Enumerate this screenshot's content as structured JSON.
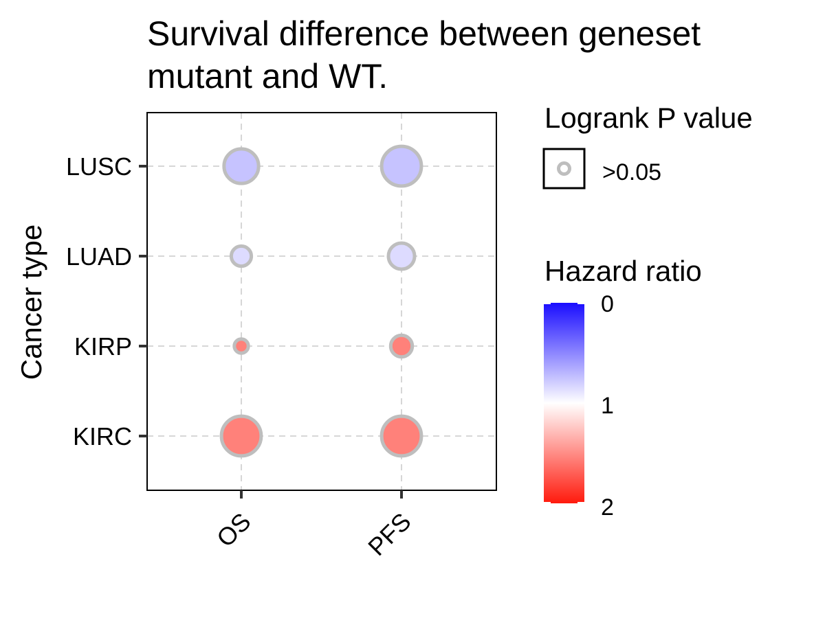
{
  "chart_data": {
    "type": "scatter",
    "title_lines": [
      "Survival difference between geneset",
      "mutant and WT."
    ],
    "xlabel": "",
    "ylabel": "Cancer type",
    "x_categories": [
      "OS",
      "PFS"
    ],
    "y_categories": [
      "KIRC",
      "KIRP",
      "LUAD",
      "LUSC"
    ],
    "grid": true,
    "points": [
      {
        "x": "OS",
        "y": "LUSC",
        "hazard_ratio": 0.75,
        "size_level": 0.78,
        "p_group": ">0.05"
      },
      {
        "x": "PFS",
        "y": "LUSC",
        "hazard_ratio": 0.75,
        "size_level": 0.95,
        "p_group": ">0.05"
      },
      {
        "x": "OS",
        "y": "LUAD",
        "hazard_ratio": 0.85,
        "size_level": 0.3,
        "p_group": ">0.05"
      },
      {
        "x": "PFS",
        "y": "LUAD",
        "hazard_ratio": 0.85,
        "size_level": 0.5,
        "p_group": ">0.05"
      },
      {
        "x": "OS",
        "y": "KIRP",
        "hazard_ratio": 1.55,
        "size_level": 0.1,
        "p_group": ">0.05"
      },
      {
        "x": "PFS",
        "y": "KIRP",
        "hazard_ratio": 1.55,
        "size_level": 0.35,
        "p_group": ">0.05"
      },
      {
        "x": "OS",
        "y": "KIRC",
        "hazard_ratio": 1.55,
        "size_level": 0.95,
        "p_group": ">0.05"
      },
      {
        "x": "PFS",
        "y": "KIRC",
        "hazard_ratio": 1.55,
        "size_level": 0.95,
        "p_group": ">0.05"
      }
    ],
    "legend_pvalue": {
      "title": "Logrank P value",
      "entries": [
        ">0.05"
      ]
    },
    "legend_color": {
      "title": "Hazard ratio",
      "range": [
        0,
        2
      ],
      "tick_labels": [
        "0",
        "1",
        "2"
      ],
      "colors": {
        "low": "#1a0dff",
        "mid": "#ffffff",
        "high": "#ff1a0d"
      }
    },
    "point_outline_color": "#bebebe"
  }
}
